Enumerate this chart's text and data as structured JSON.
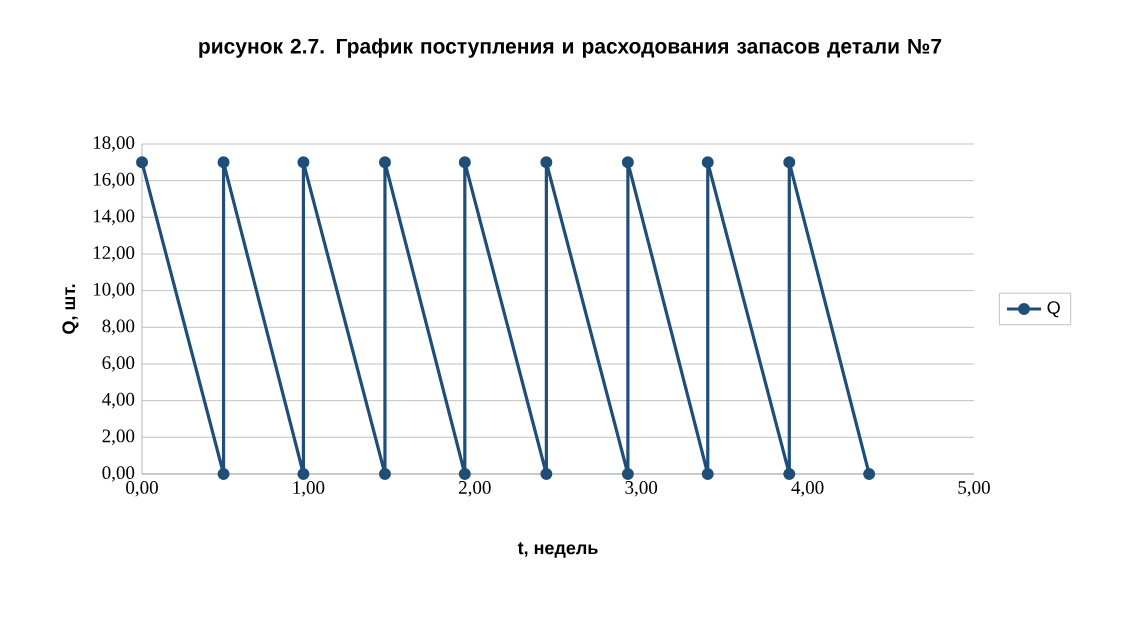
{
  "chart_data": {
    "type": "line",
    "title": "рисунок 2.7. График поступления и расходования запасов детали №7",
    "xlabel": "t, недель",
    "ylabel": "Q, шт.",
    "x": [
      0,
      0.49,
      0.49,
      0.97,
      0.97,
      1.46,
      1.46,
      1.94,
      1.94,
      2.43,
      2.43,
      2.92,
      2.92,
      3.4,
      3.4,
      3.89,
      3.89,
      4.37
    ],
    "series": [
      {
        "name": "Q",
        "color": "#1f4e79",
        "values": [
          17,
          0,
          17,
          0,
          17,
          0,
          17,
          0,
          17,
          0,
          17,
          0,
          17,
          0,
          17,
          0,
          17,
          0
        ]
      }
    ],
    "xlim": [
      0,
      5
    ],
    "ylim": [
      0,
      18
    ],
    "xticks": [
      {
        "value": 0,
        "label": "0,00"
      },
      {
        "value": 1,
        "label": "1,00"
      },
      {
        "value": 2,
        "label": "2,00"
      },
      {
        "value": 3,
        "label": "3,00"
      },
      {
        "value": 4,
        "label": "4,00"
      },
      {
        "value": 5,
        "label": "5,00"
      }
    ],
    "yticks": [
      {
        "value": 0,
        "label": "0,00"
      },
      {
        "value": 2,
        "label": "2,00"
      },
      {
        "value": 4,
        "label": "4,00"
      },
      {
        "value": 6,
        "label": "6,00"
      },
      {
        "value": 8,
        "label": "8,00"
      },
      {
        "value": 10,
        "label": "10,00"
      },
      {
        "value": 12,
        "label": "12,00"
      },
      {
        "value": 14,
        "label": "14,00"
      },
      {
        "value": 16,
        "label": "16,00"
      },
      {
        "value": 18,
        "label": "18,00"
      }
    ],
    "grid": "y",
    "legend": "right",
    "marker": "circle",
    "line_style": "solid"
  }
}
